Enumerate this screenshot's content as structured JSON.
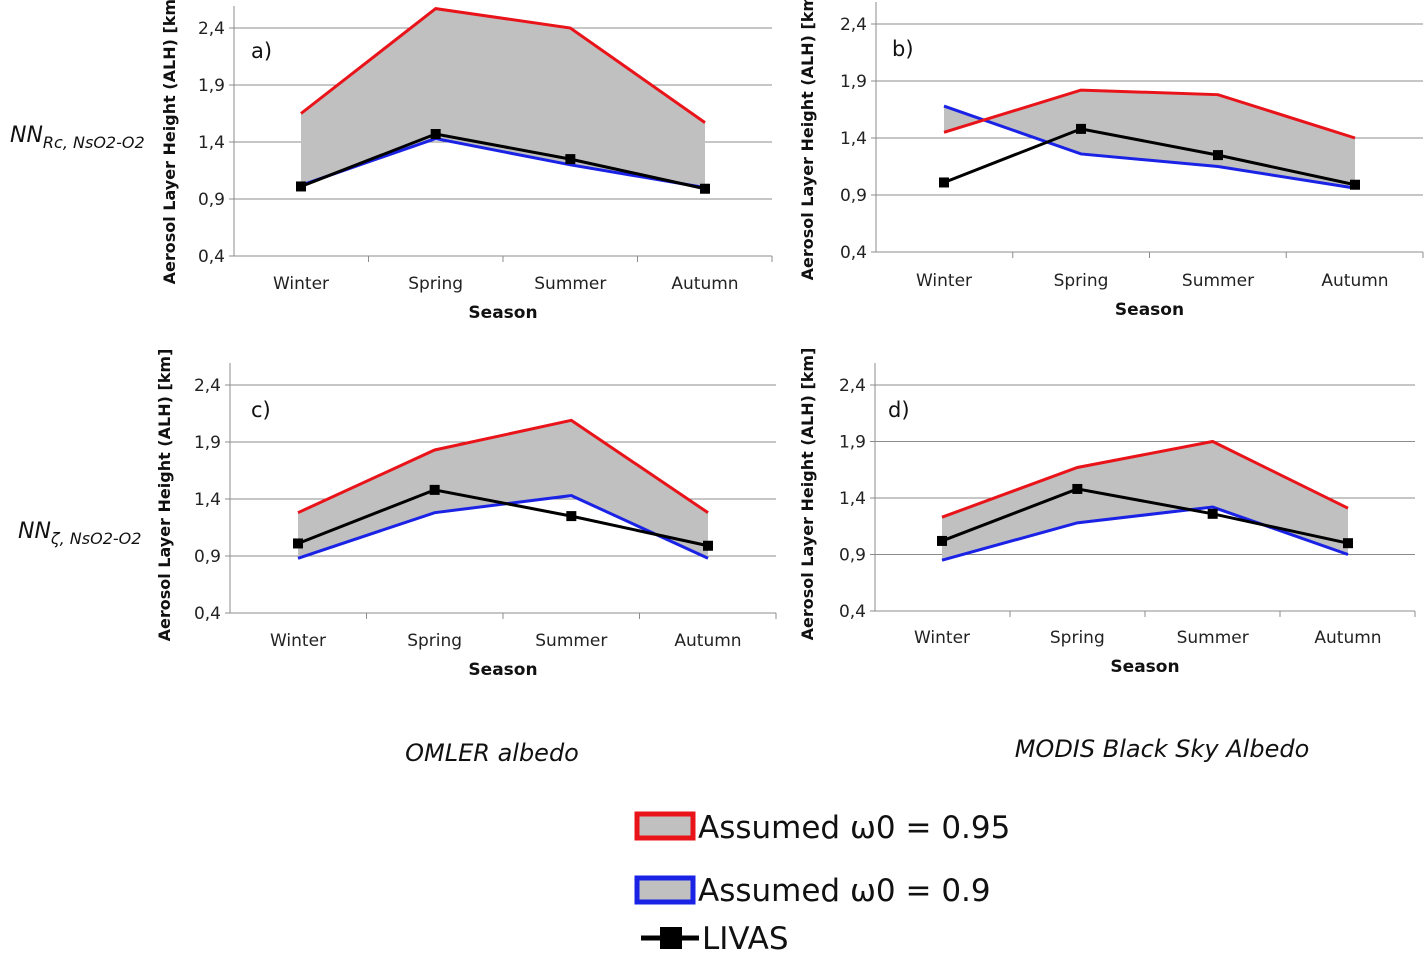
{
  "row_labels": [
    {
      "main": "NN",
      "sub": "Rc, NsO2-O2"
    },
    {
      "main": "NN",
      "sub": "ζ, NsO2-O2"
    }
  ],
  "column_labels": [
    "OMLER albedo",
    "MODIS Black Sky Albedo"
  ],
  "legend": {
    "items": [
      {
        "label": "Assumed  ω0  = 0.95",
        "color": "#e8141a",
        "fill": "#c0c0c0"
      },
      {
        "label": "Assumed  ω0  = 0.9",
        "color": "#1a22e6",
        "fill": "#c0c0c0"
      },
      {
        "label": "LIVAS",
        "color": "#000000"
      }
    ]
  },
  "colors": {
    "red": "#e8141a",
    "blue": "#1a22e6",
    "black": "#000000",
    "fill": "#c0c0c0",
    "grid": "#8c8c8c"
  },
  "chart_data": [
    {
      "type": "line",
      "panel_label": "a)",
      "categories": [
        "Winter",
        "Spring",
        "Summer",
        "Autumn"
      ],
      "xlabel": "Season",
      "ylabel": "Aerosol Layer Height (ALH) [km]",
      "ylim": [
        0.4,
        2.6
      ],
      "yticks": [
        "0,4",
        "0,9",
        "1,4",
        "1,9",
        "2,4"
      ],
      "grid": true,
      "series": [
        {
          "name": "Assumed  ω0  = 0.95",
          "values": [
            1.65,
            2.57,
            2.4,
            1.57
          ]
        },
        {
          "name": "Assumed  ω0  = 0.9",
          "values": [
            1.02,
            1.43,
            1.2,
            1.0
          ]
        },
        {
          "name": "LIVAS",
          "values": [
            1.01,
            1.47,
            1.25,
            0.99
          ]
        }
      ]
    },
    {
      "type": "line",
      "panel_label": "b)",
      "categories": [
        "Winter",
        "Spring",
        "Summer",
        "Autumn"
      ],
      "xlabel": "Season",
      "ylabel": "Aerosol Layer Height (ALH) [km]",
      "ylim": [
        0.4,
        2.6
      ],
      "yticks": [
        "0,4",
        "0,9",
        "1,4",
        "1,9",
        "2,4"
      ],
      "grid": true,
      "series": [
        {
          "name": "Assumed  ω0  = 0.95",
          "values": [
            1.45,
            1.82,
            1.78,
            1.4
          ]
        },
        {
          "name": "Assumed  ω0  = 0.9",
          "values": [
            1.68,
            1.26,
            1.15,
            0.96
          ]
        },
        {
          "name": "LIVAS",
          "values": [
            1.01,
            1.48,
            1.25,
            0.99
          ]
        }
      ]
    },
    {
      "type": "line",
      "panel_label": "c)",
      "categories": [
        "Winter",
        "Spring",
        "Summer",
        "Autumn"
      ],
      "xlabel": "Season",
      "ylabel": "Aerosol Layer Height (ALH) [km]",
      "ylim": [
        0.4,
        2.6
      ],
      "yticks": [
        "0,4",
        "0,9",
        "1,4",
        "1,9",
        "2,4"
      ],
      "grid": true,
      "series": [
        {
          "name": "Assumed  ω0  = 0.95",
          "values": [
            1.28,
            1.83,
            2.09,
            1.28
          ]
        },
        {
          "name": "Assumed  ω0  = 0.9",
          "values": [
            0.88,
            1.28,
            1.43,
            0.88
          ]
        },
        {
          "name": "LIVAS",
          "values": [
            1.01,
            1.48,
            1.25,
            0.99
          ]
        }
      ]
    },
    {
      "type": "line",
      "panel_label": "d)",
      "categories": [
        "Winter",
        "Spring",
        "Summer",
        "Autumn"
      ],
      "xlabel": "Season",
      "ylabel": "Aerosol Layer Height (ALH) [km]",
      "ylim": [
        0.4,
        2.6
      ],
      "yticks": [
        "0,4",
        "0,9",
        "1,4",
        "1,9",
        "2,4"
      ],
      "grid": true,
      "series": [
        {
          "name": "Assumed  ω0  = 0.95",
          "values": [
            1.23,
            1.67,
            1.9,
            1.31
          ]
        },
        {
          "name": "Assumed  ω0  = 0.9",
          "values": [
            0.85,
            1.18,
            1.32,
            0.9
          ]
        },
        {
          "name": "LIVAS",
          "values": [
            1.02,
            1.48,
            1.26,
            1.0
          ]
        }
      ]
    }
  ]
}
